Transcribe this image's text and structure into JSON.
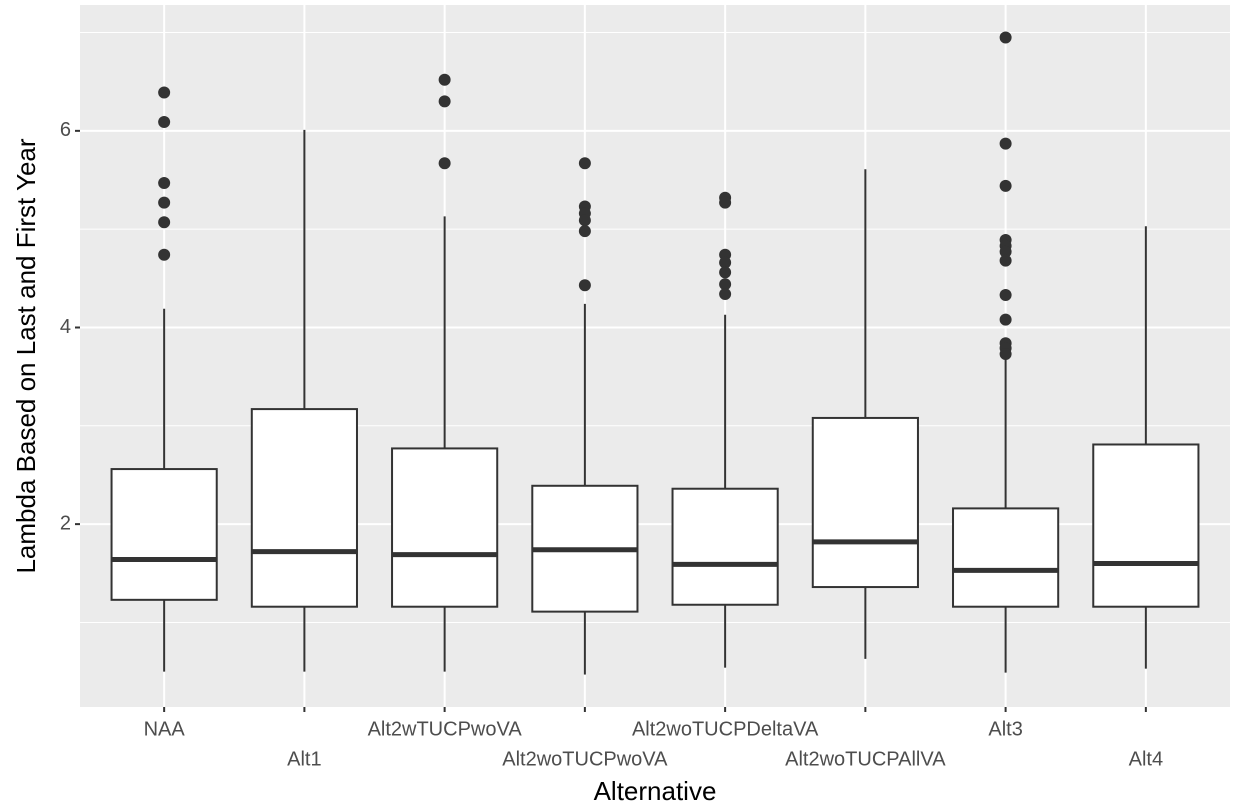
{
  "chart_data": {
    "type": "box",
    "x_label": "Alternative",
    "y_label": "Lambda Based on Last and First Year",
    "categories": [
      "NAA",
      "Alt1",
      "Alt2wTUCPwoVA",
      "Alt2woTUCPwoVA",
      "Alt2woTUCPDeltaVA",
      "Alt2woTUCPAllVA",
      "Alt3",
      "Alt4"
    ],
    "boxes": [
      {
        "low": 0.5,
        "q1": 1.23,
        "median": 1.64,
        "q3": 2.56,
        "high": 4.19,
        "outliers": [
          6.39,
          6.09,
          5.47,
          5.27,
          5.07,
          4.74
        ]
      },
      {
        "low": 0.5,
        "q1": 1.16,
        "median": 1.72,
        "q3": 3.17,
        "high": 6.01,
        "outliers": []
      },
      {
        "low": 0.5,
        "q1": 1.16,
        "median": 1.69,
        "q3": 2.77,
        "high": 5.13,
        "outliers": [
          6.52,
          6.3,
          5.67
        ]
      },
      {
        "low": 0.47,
        "q1": 1.11,
        "median": 1.74,
        "q3": 2.39,
        "high": 4.24,
        "outliers": [
          5.67,
          5.23,
          5.16,
          5.09,
          4.98,
          4.43
        ]
      },
      {
        "low": 0.54,
        "q1": 1.18,
        "median": 1.59,
        "q3": 2.36,
        "high": 4.13,
        "outliers": [
          5.32,
          5.27,
          4.74,
          4.66,
          4.56,
          4.44,
          4.34
        ]
      },
      {
        "low": 0.63,
        "q1": 1.36,
        "median": 1.82,
        "q3": 3.08,
        "high": 5.61,
        "outliers": []
      },
      {
        "low": 0.49,
        "q1": 1.16,
        "median": 1.53,
        "q3": 2.16,
        "high": 3.7,
        "outliers": [
          6.95,
          5.87,
          5.44,
          4.89,
          4.83,
          4.77,
          4.68,
          4.33,
          4.08,
          3.84,
          3.79,
          3.73
        ]
      },
      {
        "low": 0.53,
        "q1": 1.16,
        "median": 1.6,
        "q3": 2.81,
        "high": 5.03,
        "outliers": []
      }
    ],
    "ylim": [
      0.14,
      7.28
    ],
    "yticks": [
      2,
      4,
      6
    ],
    "yminor": [
      1,
      3,
      5,
      7
    ],
    "grid": true,
    "panel_color": "#ebebeb",
    "box_fill": "#ffffff",
    "line_color": "#333333"
  }
}
